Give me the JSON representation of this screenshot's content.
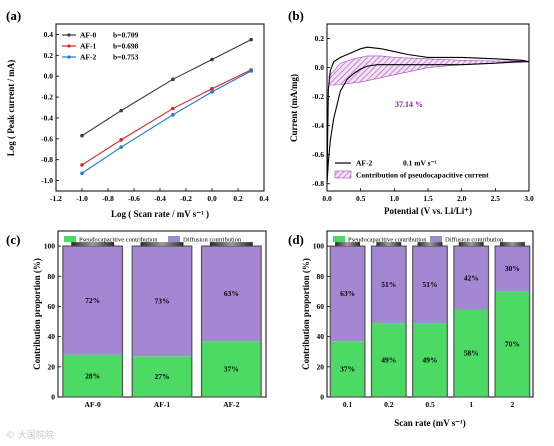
{
  "panels": {
    "a": "(a)",
    "b": "(b)",
    "c": "(c)",
    "d": "(d)"
  },
  "watermark": "© 大国院院",
  "chart_data": [
    {
      "type": "line",
      "panel": "a",
      "xlabel": "Log ( Scan rate / mV s⁻¹ )",
      "ylabel": "Log ( Peak current / mA)",
      "xlim": [
        -1.2,
        0.4
      ],
      "ylim": [
        -1.1,
        0.5
      ],
      "xticks": [
        "-1.2",
        "-1.0",
        "-0.8",
        "-0.6",
        "-0.4",
        "-0.2",
        "0.0",
        "0.2",
        "0.4"
      ],
      "yticks": [
        "-1.0",
        "-0.8",
        "-0.6",
        "-0.4",
        "-0.2",
        "0.0",
        "0.2",
        "0.4"
      ],
      "legend_position": "top-left",
      "series": [
        {
          "name": "AF-0",
          "b_label": "b=0.709",
          "color": "#3a3a3a",
          "x": [
            -1.0,
            -0.699,
            -0.301,
            0.0,
            0.301
          ],
          "y": [
            -0.57,
            -0.33,
            -0.03,
            0.16,
            0.35
          ]
        },
        {
          "name": "AF-1",
          "b_label": "b=0.698",
          "color": "#d62728",
          "x": [
            -1.0,
            -0.699,
            -0.301,
            0.0,
            0.301
          ],
          "y": [
            -0.85,
            -0.61,
            -0.31,
            -0.12,
            0.06
          ]
        },
        {
          "name": "AF-2",
          "b_label": "b=0.753",
          "color": "#1f77d4",
          "x": [
            -1.0,
            -0.699,
            -0.301,
            0.0,
            0.301
          ],
          "y": [
            -0.93,
            -0.68,
            -0.37,
            -0.15,
            0.05
          ]
        }
      ]
    },
    {
      "type": "line",
      "panel": "b",
      "xlabel": "Potential (V vs. Li/Li⁺)",
      "ylabel": "Current (mA/mg)",
      "xlim": [
        0.0,
        3.0
      ],
      "ylim": [
        -0.85,
        0.3
      ],
      "xticks": [
        "0.0",
        "0.5",
        "1.0",
        "1.5",
        "2.0",
        "2.5",
        "3.0"
      ],
      "yticks": [
        "-0.8",
        "-0.6",
        "-0.4",
        "-0.2",
        "0.0",
        "0.2"
      ],
      "annotation": "37.14 %",
      "legend_position": "bottom-right",
      "series": [
        {
          "name": "AF-2",
          "label_suffix": "0.1 mV s⁻¹",
          "color": "#000000",
          "x": [
            0.0,
            0.02,
            0.05,
            0.1,
            0.2,
            0.3,
            0.4,
            0.5,
            0.6,
            0.75,
            0.9,
            1.1,
            1.5,
            2.0,
            2.5,
            2.8,
            3.0,
            2.9,
            2.5,
            2.0,
            1.5,
            1.2,
            1.0,
            0.8,
            0.6,
            0.5,
            0.4,
            0.3,
            0.2,
            0.1,
            0.05,
            0.02,
            0.0
          ],
          "y": [
            -0.8,
            -0.65,
            -0.5,
            -0.35,
            -0.16,
            -0.08,
            -0.04,
            -0.01,
            0.01,
            0.02,
            0.02,
            0.02,
            0.02,
            0.02,
            0.03,
            0.04,
            0.04,
            0.05,
            0.06,
            0.07,
            0.07,
            0.09,
            0.11,
            0.13,
            0.14,
            0.13,
            0.11,
            0.09,
            0.07,
            0.04,
            -0.02,
            -0.15,
            -0.8
          ]
        },
        {
          "name": "Contribution of pseudocapacitive current",
          "color": "#c98ad8",
          "upper_x": [
            0.03,
            0.2,
            0.4,
            0.6,
            0.8,
            1.0,
            1.5,
            2.0,
            2.5,
            2.9
          ],
          "upper_y": [
            -0.06,
            0.03,
            0.06,
            0.08,
            0.08,
            0.07,
            0.06,
            0.05,
            0.045,
            0.045
          ],
          "lower_x": [
            2.9,
            2.5,
            2.0,
            1.5,
            1.0,
            0.7,
            0.5,
            0.3,
            0.15,
            0.03
          ],
          "lower_y": [
            0.035,
            0.03,
            0.02,
            0.0,
            -0.05,
            -0.08,
            -0.1,
            -0.11,
            -0.12,
            -0.12
          ]
        }
      ]
    },
    {
      "type": "bar",
      "panel": "c",
      "stacked": true,
      "ylabel": "Contribution proportion (%)",
      "ylim": [
        0,
        110
      ],
      "yticks": [
        "0",
        "20",
        "40",
        "60",
        "80",
        "100"
      ],
      "categories": [
        "AF-0",
        "AF-1",
        "AF-2"
      ],
      "legend_position": "top",
      "series": [
        {
          "name": "Pseudocapacitive contribution",
          "color": "#4cd964",
          "values": [
            28,
            27,
            37
          ],
          "labels": [
            "28%",
            "27%",
            "37%"
          ]
        },
        {
          "name": "Diffusion contribution",
          "color": "#a487d2",
          "values": [
            72,
            73,
            63
          ],
          "labels": [
            "72%",
            "73%",
            "63%"
          ]
        }
      ]
    },
    {
      "type": "bar",
      "panel": "d",
      "stacked": true,
      "xlabel": "Scan rate (mV s⁻¹)",
      "ylabel": "Contribution proportion (%)",
      "ylim": [
        0,
        110
      ],
      "yticks": [
        "0",
        "20",
        "40",
        "60",
        "80",
        "100"
      ],
      "categories": [
        "0.1",
        "0.2",
        "0.5",
        "1",
        "2"
      ],
      "legend_position": "top",
      "series": [
        {
          "name": "Pseudocapacitive contribution",
          "color": "#4cd964",
          "values": [
            37,
            49,
            49,
            58,
            70
          ],
          "labels": [
            "37%",
            "49%",
            "49%",
            "58%",
            "70%"
          ]
        },
        {
          "name": "Diffusion contribution",
          "color": "#a487d2",
          "values": [
            63,
            51,
            51,
            42,
            30
          ],
          "labels": [
            "63%",
            "51%",
            "51%",
            "42%",
            "30%"
          ]
        }
      ]
    }
  ]
}
